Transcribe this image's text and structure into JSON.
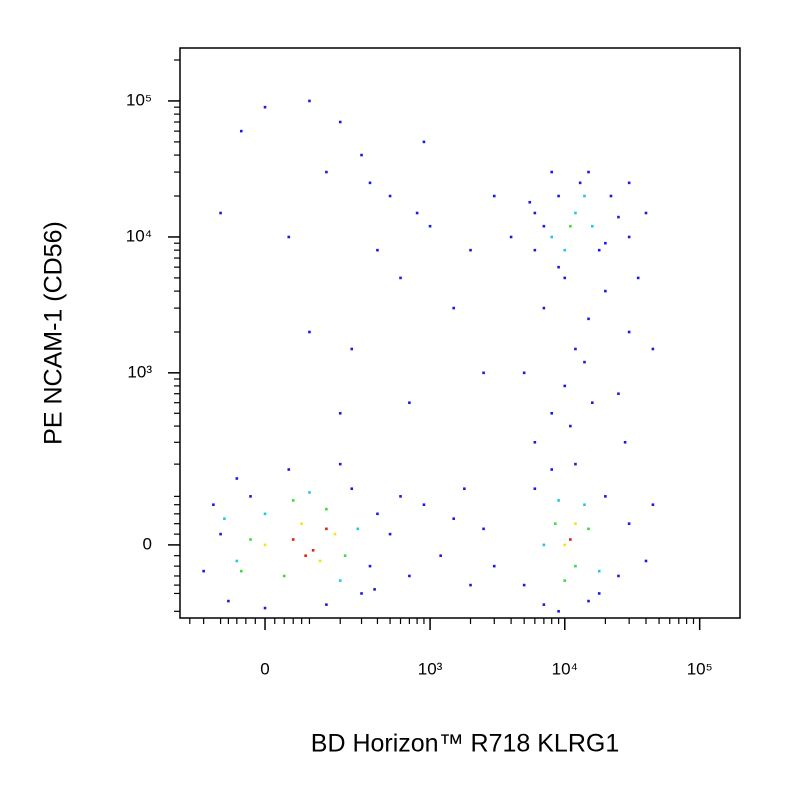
{
  "chart_data": {
    "type": "scatter",
    "x_label": "BD Horizon™ R718  KLRG1",
    "y_label": "PE  NCAM-1 (CD56)",
    "scale": "asinh",
    "x_asinh_width": 120,
    "y_asinh_width": 109,
    "xlim": [
      -242,
      199000
    ],
    "ylim": [
      -172,
      245000
    ],
    "xticks": [
      0,
      {
        "value": 1000,
        "label": "10³"
      },
      {
        "value": 10000,
        "label": "10⁴"
      },
      {
        "value": 100000,
        "label": "10⁵"
      }
    ],
    "yticks": [
      0,
      {
        "value": 1000,
        "label": "10³"
      },
      {
        "value": 10000,
        "label": "10⁴"
      },
      {
        "value": 100000,
        "label": "10⁵"
      }
    ],
    "xminor": [
      -200,
      -150,
      -100,
      -80,
      -60,
      -40,
      -20,
      20,
      40,
      60,
      80,
      100,
      200,
      300,
      400,
      500,
      600,
      700,
      800,
      900,
      2000,
      3000,
      4000,
      5000,
      6000,
      7000,
      8000,
      9000,
      20000,
      30000,
      40000,
      50000,
      60000,
      70000,
      80000,
      90000,
      200000
    ],
    "yminor": [
      -150,
      -100,
      -80,
      -60,
      -40,
      -20,
      20,
      40,
      60,
      80,
      100,
      200,
      300,
      400,
      500,
      600,
      700,
      800,
      900,
      2000,
      3000,
      4000,
      5000,
      6000,
      7000,
      8000,
      9000,
      20000,
      30000,
      40000,
      50000,
      60000,
      70000,
      80000,
      90000,
      200000
    ],
    "series": [
      {
        "color": "#1a1ae6",
        "x": [
          -150,
          -120,
          -80,
          -60,
          0,
          50,
          150,
          250,
          350,
          400,
          300,
          -100,
          200,
          -30,
          380,
          5000,
          6000,
          7000,
          8000,
          15000,
          20000,
          25000,
          30000,
          40000,
          12000,
          9000,
          18000,
          45000,
          500,
          700,
          900,
          1200,
          1500,
          2000,
          2500,
          3000,
          600,
          1800,
          6000,
          8000,
          10000,
          12000,
          15000,
          20000,
          7000,
          25000,
          30000,
          9000,
          14000,
          18000,
          35000,
          11000,
          40000,
          5000,
          22000,
          8000,
          30000,
          13000,
          6000,
          10000,
          16000,
          28000,
          45000,
          6000,
          7000,
          20000,
          25000,
          15000,
          9000,
          30000,
          5500,
          -50,
          0,
          100,
          200,
          300,
          500,
          800,
          150,
          50,
          400,
          600,
          100,
          250,
          1000,
          2000,
          3000,
          1500,
          700,
          200,
          4000,
          2500,
          350,
          900,
          -100
        ],
        "y": [
          -50,
          80,
          -120,
          150,
          -140,
          180,
          -130,
          120,
          -40,
          60,
          -100,
          20,
          200,
          100,
          -90,
          -80,
          120,
          -130,
          180,
          -120,
          100,
          -60,
          40,
          -30,
          200,
          -150,
          -100,
          80,
          20,
          -60,
          80,
          -20,
          50,
          -80,
          30,
          -40,
          100,
          120,
          300,
          500,
          800,
          1500,
          2500,
          4000,
          3000,
          700,
          2000,
          6000,
          1200,
          8000,
          5000,
          400,
          15000,
          1000,
          20000,
          30000,
          25000,
          25000,
          15000,
          5000,
          600,
          300,
          1500,
          8000,
          12000,
          9000,
          14000,
          30000,
          20000,
          10000,
          18000,
          60000,
          90000,
          100000,
          70000,
          40000,
          20000,
          15000,
          30000,
          10000,
          8000,
          5000,
          2000,
          1500,
          12000,
          8000,
          20000,
          3000,
          600,
          500,
          10000,
          1000,
          25000,
          50000,
          15000
        ]
      },
      {
        "color": "#1ec8e6",
        "x": [
          -60,
          0,
          200,
          280,
          100,
          -90,
          7000,
          14000,
          18000,
          9000,
          8000,
          12000,
          16000,
          10000,
          14000
        ],
        "y": [
          -30,
          60,
          -70,
          30,
          110,
          50,
          0,
          80,
          -50,
          90,
          10000,
          15000,
          12000,
          8000,
          20000
        ]
      },
      {
        "color": "#3cdc3c",
        "x": [
          -30,
          40,
          150,
          220,
          60,
          -50,
          8500,
          12000,
          15000,
          10000,
          11000
        ],
        "y": [
          10,
          -60,
          70,
          -20,
          90,
          -50,
          40,
          -40,
          30,
          -70,
          12000
        ]
      },
      {
        "color": "#f0e614",
        "x": [
          0,
          80,
          130,
          180,
          10000,
          12000
        ],
        "y": [
          0,
          40,
          -30,
          20,
          0,
          40
        ]
      },
      {
        "color": "#e61e14",
        "x": [
          60,
          110,
          150,
          90,
          11000
        ],
        "y": [
          10,
          -10,
          30,
          -20,
          10
        ]
      }
    ]
  }
}
